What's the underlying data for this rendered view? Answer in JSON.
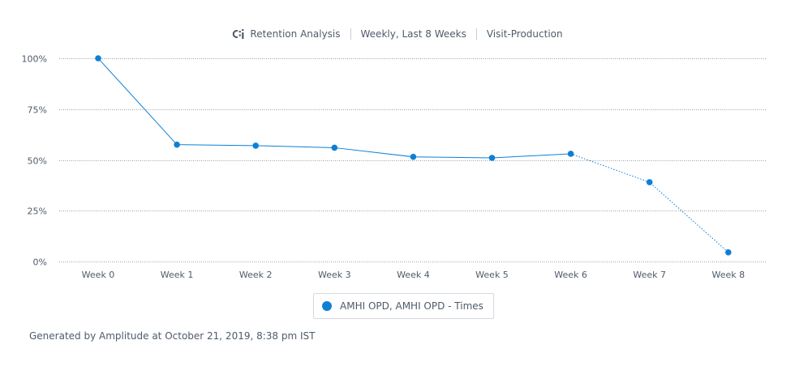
{
  "header": {
    "title": "Retention Analysis",
    "interval": "Weekly, Last 8 Weeks",
    "project": "Visit-Production"
  },
  "legend": {
    "series_label": "AMHI OPD, AMHI OPD - Times"
  },
  "footer": {
    "text": "Generated by Amplitude at October 21, 2019, 8:38 pm IST"
  },
  "colors": {
    "series": "#0f7fd4",
    "grid": "#9aa1aa",
    "text": "#4f5b6a"
  },
  "chart_data": {
    "type": "line",
    "title": "Retention Analysis",
    "xlabel": "",
    "ylabel": "",
    "categories": [
      "Week 0",
      "Week 1",
      "Week 2",
      "Week 3",
      "Week 4",
      "Week 5",
      "Week 6",
      "Week 7",
      "Week 8"
    ],
    "series": [
      {
        "name": "AMHI OPD, AMHI OPD - Times",
        "values": [
          100,
          57.5,
          57,
          56,
          51.5,
          51,
          53,
          39,
          4.5
        ],
        "complete_through_index": 6
      }
    ],
    "ylim": [
      0,
      100
    ],
    "yticks": [
      0,
      25,
      50,
      75,
      100
    ],
    "ytick_labels": [
      "0%",
      "25%",
      "50%",
      "75%",
      "100%"
    ],
    "grid": true,
    "legend_position": "bottom-center"
  }
}
